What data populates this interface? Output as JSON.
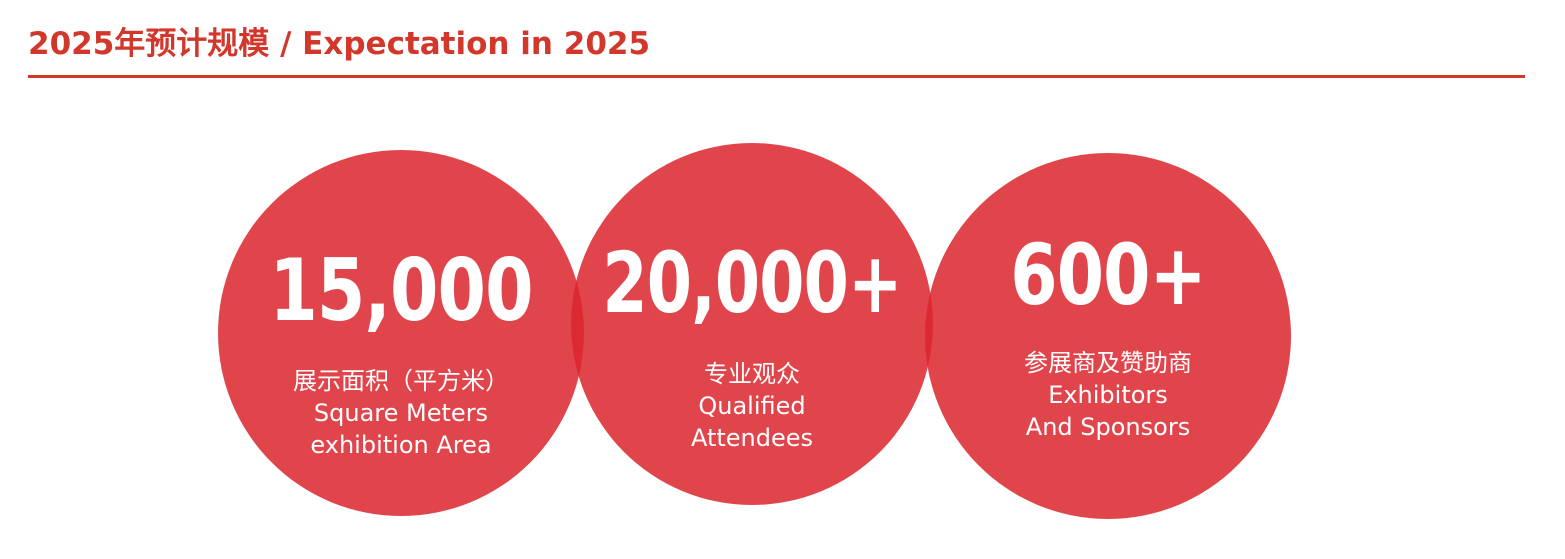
{
  "header": {
    "title": "2025年预计规模 / Expectation in 2025"
  },
  "stats": [
    {
      "value": "15,000",
      "label_cn": "展示面积（平方米）",
      "label_en_1": "Square Meters",
      "label_en_2": "exhibition Area"
    },
    {
      "value": "20,000+",
      "label_cn": "专业观众",
      "label_en_1": "Qualified",
      "label_en_2": "Attendees"
    },
    {
      "value": "600+",
      "label_cn": "参展商及赞助商",
      "label_en_1": "Exhibitors",
      "label_en_2": "And Sponsors"
    }
  ],
  "colors": {
    "accent": "#d2372b",
    "circle": "#dc262e",
    "text_on_circle": "#ffffff"
  }
}
